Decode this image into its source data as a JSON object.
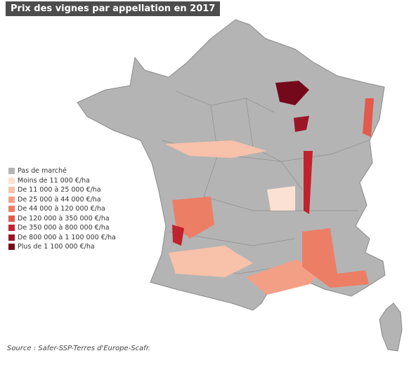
{
  "title": "Prix des vignes par appellation en 2017",
  "legend": [
    {
      "label": "Pas de marché",
      "color": "#b4b4b4"
    },
    {
      "label": "Moins de 11 000 €/ha",
      "color": "#fbe1d4"
    },
    {
      "label": "De 11 000 à 25 000 €/ha",
      "color": "#f7c1aa"
    },
    {
      "label": "De 25 000 à 44 000 €/ha",
      "color": "#f39f86"
    },
    {
      "label": "De 44 000 à 120 000 €/ha",
      "color": "#ec7e66"
    },
    {
      "label": "De 120 000 à 350 000 €/ha",
      "color": "#e25a4b"
    },
    {
      "label": "De 350 000 à 800 000 €/ha",
      "color": "#c0232d"
    },
    {
      "label": "De 800 000 à 1 100 000 €/ha",
      "color": "#9c1428"
    },
    {
      "label": "Plus de 1 100 000 €/ha",
      "color": "#74091c"
    }
  ],
  "source": "Source : Safer-SSP-Terres d'Europe-Scafr."
}
